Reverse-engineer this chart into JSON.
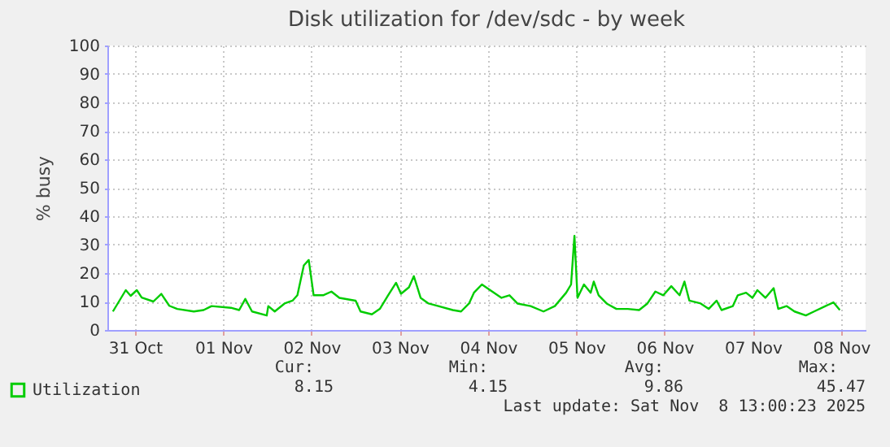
{
  "chart_data": {
    "type": "line",
    "title": "Disk utilization for /dev/sdc - by week",
    "ylabel": "% busy",
    "x": [
      "2025-10-31T06:00",
      "2025-10-31T09:30",
      "2025-10-31T10:50",
      "2025-10-31T12:30",
      "2025-10-31T13:50",
      "2025-10-31T17:00",
      "2025-10-31T19:10",
      "2025-10-31T21:20",
      "2025-10-31T23:30",
      "2025-11-01T04:00",
      "2025-11-01T06:40",
      "2025-11-01T08:50",
      "2025-11-01T14:05",
      "2025-11-01T16:20",
      "2025-11-01T18:00",
      "2025-11-01T19:50",
      "2025-11-01T23:50",
      "2025-11-02T00:15",
      "2025-11-02T02:00",
      "2025-11-02T04:40",
      "2025-11-02T06:50",
      "2025-11-02T08:10",
      "2025-11-02T09:55",
      "2025-11-02T11:15",
      "2025-11-02T12:35",
      "2025-11-02T15:10",
      "2025-11-02T17:25",
      "2025-11-02T19:35",
      "2025-11-03T00:00",
      "2025-11-03T01:20",
      "2025-11-03T04:25",
      "2025-11-03T06:35",
      "2025-11-03T08:50",
      "2025-11-03T11:00",
      "2025-11-03T12:20",
      "2025-11-03T14:30",
      "2025-11-03T15:50",
      "2025-11-03T17:40",
      "2025-11-03T19:50",
      "2025-11-03T22:30",
      "2025-11-04T02:25",
      "2025-11-04T04:40",
      "2025-11-04T06:50",
      "2025-11-04T08:10",
      "2025-11-04T10:20",
      "2025-11-04T12:35",
      "2025-11-04T15:40",
      "2025-11-04T17:50",
      "2025-11-04T20:00",
      "2025-11-04T23:35",
      "2025-11-05T03:05",
      "2025-11-05T06:10",
      "2025-11-05T09:15",
      "2025-11-05T10:35",
      "2025-11-05T11:30",
      "2025-11-05T12:20",
      "2025-11-05T14:05",
      "2025-11-05T15:55",
      "2025-11-05T16:45",
      "2025-11-05T18:05",
      "2025-11-05T20:15",
      "2025-11-05T22:55",
      "2025-11-06T02:00",
      "2025-11-06T05:05",
      "2025-11-06T07:20",
      "2025-11-06T09:30",
      "2025-11-06T11:40",
      "2025-11-06T13:50",
      "2025-11-06T16:05",
      "2025-11-06T17:25",
      "2025-11-06T18:45",
      "2025-11-06T21:50",
      "2025-11-07T00:00",
      "2025-11-07T02:10",
      "2025-11-07T03:30",
      "2025-11-07T06:35",
      "2025-11-07T07:55",
      "2025-11-07T10:10",
      "2025-11-07T11:55",
      "2025-11-07T13:15",
      "2025-11-07T15:25",
      "2025-11-07T17:40",
      "2025-11-07T18:55",
      "2025-11-07T21:10",
      "2025-11-07T23:20",
      "2025-11-08T02:25",
      "2025-11-08T04:40",
      "2025-11-08T07:45",
      "2025-11-08T09:55",
      "2025-11-08T11:40"
    ],
    "series": [
      {
        "name": "Utilization",
        "color": "#00cc00",
        "values": [
          6.5,
          14,
          12,
          14,
          11.4,
          10,
          12.7,
          8.5,
          7.4,
          6.5,
          7,
          8.4,
          7.8,
          7,
          10.9,
          6.5,
          5.1,
          8.4,
          6.5,
          9.3,
          10.3,
          12.2,
          22.7,
          24.6,
          12.2,
          12.2,
          13.5,
          11.3,
          10.3,
          6.5,
          5.5,
          7.4,
          12.2,
          16.6,
          12.7,
          15,
          18.9,
          11.3,
          9.3,
          8.4,
          7,
          6.5,
          9.3,
          13.1,
          16,
          14,
          11.3,
          12.2,
          9.3,
          8.4,
          6.5,
          8.4,
          13.1,
          16,
          33.1,
          11.3,
          16,
          13.1,
          17,
          12.2,
          9.3,
          7.4,
          7.4,
          7,
          9.3,
          13.5,
          12.2,
          15.4,
          12.2,
          17,
          10.3,
          9.3,
          7.4,
          10.3,
          7,
          8.4,
          12.2,
          13.1,
          11.3,
          14,
          11.3,
          14.7,
          7.4,
          8.4,
          6.5,
          5.1,
          6.5,
          8.4,
          9.7,
          7
        ]
      }
    ],
    "xlim": [
      "2025-10-31T04:30",
      "2025-11-08T18:40"
    ],
    "xticks": [
      {
        "value": "2025-10-31T12:00",
        "label": "31 Oct"
      },
      {
        "value": "2025-11-01T12:00",
        "label": "01 Nov"
      },
      {
        "value": "2025-11-02T12:00",
        "label": "02 Nov"
      },
      {
        "value": "2025-11-03T12:00",
        "label": "03 Nov"
      },
      {
        "value": "2025-11-04T12:00",
        "label": "04 Nov"
      },
      {
        "value": "2025-11-05T12:00",
        "label": "05 Nov"
      },
      {
        "value": "2025-11-06T12:00",
        "label": "06 Nov"
      },
      {
        "value": "2025-11-07T12:00",
        "label": "07 Nov"
      },
      {
        "value": "2025-11-08T12:00",
        "label": "08 Nov"
      }
    ],
    "ylim": [
      0,
      100
    ],
    "yticks": [
      0,
      10,
      20,
      30,
      40,
      50,
      60,
      70,
      80,
      90,
      100
    ],
    "grid": true,
    "legend": "bottom left",
    "annotations": [
      "Cur:",
      "Min:",
      "Avg:",
      "Max:",
      "8.15",
      "4.15",
      "9.86",
      "45.47",
      "Last update: Sat Nov  8 13:00:23 2025"
    ]
  }
}
